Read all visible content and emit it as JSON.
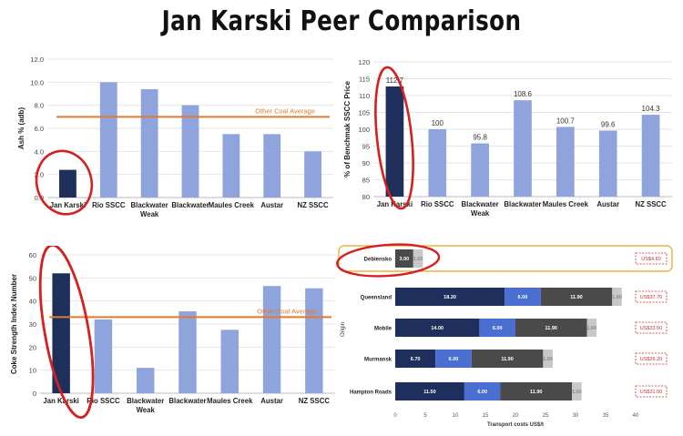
{
  "page": {
    "title": "Jan Karski Peer Comparison"
  },
  "colors": {
    "highlight_bar": "#1f2f5b",
    "peer_bar": "#8fa3dc",
    "average_line": "#e07b2c",
    "annotation": "#d62020",
    "stack1": "#1f2f5b",
    "stack2": "#4a6fd0",
    "stack3": "#4a4a4a",
    "stack4": "#c8c8c8",
    "source_box": "#e8a317"
  },
  "chart_data": [
    {
      "type": "bar",
      "id": "ash",
      "categories": [
        "Jan Karski",
        "Rio SSCC",
        "Blackwater\nWeak",
        "Blackwater",
        "Maules Creek",
        "Austar",
        "NZ SSCC"
      ],
      "values": [
        2.4,
        10.0,
        9.4,
        8.0,
        5.5,
        5.5,
        4.0
      ],
      "ylabel": "Ash % (adb)",
      "ylim": [
        0,
        12
      ],
      "yticks": [
        "0.0",
        "2.0",
        "4.0",
        "6.0",
        "8.0",
        "10.0",
        "12.0"
      ],
      "reference_line": {
        "label": "Other Coal Average",
        "value": 7.0
      },
      "highlight_index": 0
    },
    {
      "type": "bar",
      "id": "price",
      "categories": [
        "Jan Karski",
        "Rio SSCC",
        "Blackwater\nWeak",
        "Blackwater",
        "Maules Creek",
        "Austar",
        "NZ SSCC"
      ],
      "values": [
        112.7,
        100,
        95.8,
        108.6,
        100.7,
        99.6,
        104.3
      ],
      "data_labels": [
        "112.7",
        "100",
        "95.8",
        "108.6",
        "100.7",
        "99.6",
        "104.3"
      ],
      "ylabel": "% of Benchmak SSCC Price",
      "ylim": [
        80,
        120
      ],
      "yticks": [
        "80",
        "85",
        "90",
        "95",
        "100",
        "105",
        "110",
        "115",
        "120"
      ],
      "highlight_index": 0
    },
    {
      "type": "bar",
      "id": "csn",
      "categories": [
        "Jan Karski",
        "Rio SSCC",
        "Blackwater\nWeak",
        "Blackwater",
        "Maules Creek",
        "Austar",
        "NZ SSCC"
      ],
      "values": [
        52,
        32,
        11,
        35.5,
        27.5,
        46.5,
        45.5
      ],
      "ylabel": "Coke Strength Index Number",
      "ylim": [
        0,
        60
      ],
      "yticks": [
        "0",
        "10",
        "20",
        "30",
        "40",
        "50",
        "60"
      ],
      "reference_line": {
        "label": "Other Coal Average",
        "value": 33
      },
      "highlight_index": 0
    },
    {
      "type": "bar",
      "id": "transport",
      "orientation": "horizontal-stacked",
      "categories": [
        "Debiensko",
        "Queensland",
        "Mobile",
        "Murmansk",
        "Hampton Roads"
      ],
      "series": [
        {
          "values": [
            0,
            18.2,
            14.0,
            6.7,
            11.5
          ],
          "labels": [
            "",
            "18.20",
            "14.00",
            "6.70",
            "11.50"
          ]
        },
        {
          "values": [
            0,
            6.0,
            6.0,
            6.0,
            6.0
          ],
          "labels": [
            "",
            "6.00",
            "6.00",
            "6.00",
            "6.00"
          ]
        },
        {
          "values": [
            3.0,
            11.9,
            11.9,
            11.9,
            11.9
          ],
          "labels": [
            "3.00",
            "11.90",
            "11.90",
            "11.90",
            "11.90"
          ]
        },
        {
          "values": [
            1.6,
            1.6,
            1.6,
            1.6,
            1.6
          ],
          "labels": [
            "1.60",
            "1.60",
            "1.60",
            "1.60",
            "1.60"
          ]
        }
      ],
      "totals": [
        "US$4.60",
        "US$37.70",
        "US$33.50",
        "US$26.20",
        "US$31.00"
      ],
      "xlabel": "Transport costs US$/t",
      "ylabel": "Origin",
      "xlim": [
        0,
        40
      ],
      "xticks": [
        "0",
        "5",
        "10",
        "15",
        "20",
        "25",
        "30",
        "35",
        "40"
      ]
    }
  ]
}
